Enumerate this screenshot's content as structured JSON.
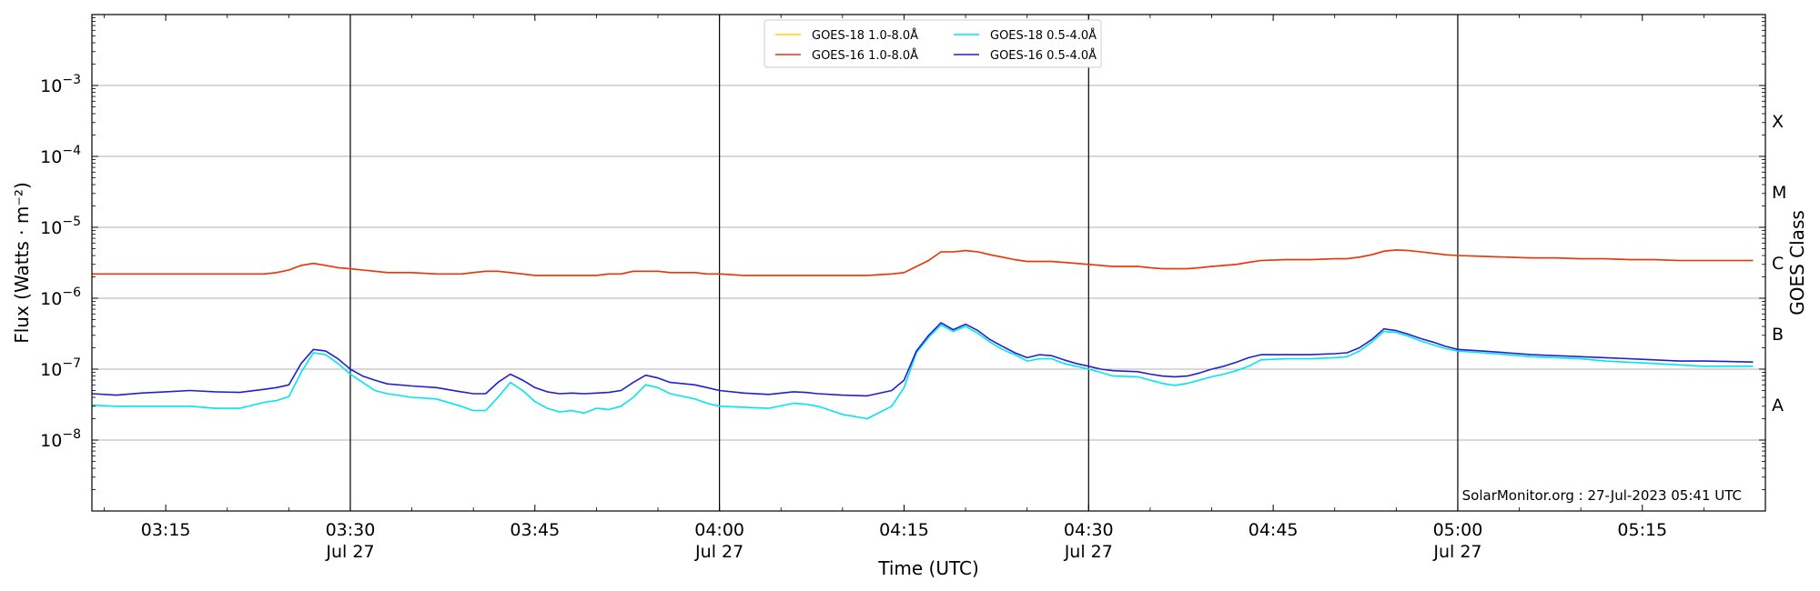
{
  "chart_data": {
    "type": "line",
    "title": "",
    "xlabel": "Time (UTC)",
    "ylabel": "Flux (Watts · m⁻²)",
    "ylabel_right": "GOES Class",
    "y_scale": "log",
    "ylim": [
      1e-09,
      0.01
    ],
    "xlim": [
      "03:09",
      "05:25"
    ],
    "grid": "horizontal",
    "legend_position": "top-center",
    "x_ticks": [
      {
        "t": "03:15",
        "label": "03:15",
        "date": ""
      },
      {
        "t": "03:30",
        "label": "03:30",
        "date": "Jul 27"
      },
      {
        "t": "03:45",
        "label": "03:45",
        "date": ""
      },
      {
        "t": "04:00",
        "label": "04:00",
        "date": "Jul 27"
      },
      {
        "t": "04:15",
        "label": "04:15",
        "date": ""
      },
      {
        "t": "04:30",
        "label": "04:30",
        "date": "Jul 27"
      },
      {
        "t": "04:45",
        "label": "04:45",
        "date": ""
      },
      {
        "t": "05:00",
        "label": "05:00",
        "date": "Jul 27"
      },
      {
        "t": "05:15",
        "label": "05:15",
        "date": ""
      }
    ],
    "vertical_lines": [
      "03:30",
      "04:00",
      "04:30",
      "05:00"
    ],
    "y_ticks": [
      {
        "value": 1e-08,
        "base": "10",
        "exp": "−8"
      },
      {
        "value": 1e-07,
        "base": "10",
        "exp": "−7"
      },
      {
        "value": 1e-06,
        "base": "10",
        "exp": "−6"
      },
      {
        "value": 1e-05,
        "base": "10",
        "exp": "−5"
      },
      {
        "value": 0.0001,
        "base": "10",
        "exp": "−4"
      },
      {
        "value": 0.001,
        "base": "10",
        "exp": "−3"
      }
    ],
    "goes_classes": [
      {
        "label": "A",
        "value": 3.16e-08
      },
      {
        "label": "B",
        "value": 3.16e-07
      },
      {
        "label": "C",
        "value": 3.16e-06
      },
      {
        "label": "M",
        "value": 3.16e-05
      },
      {
        "label": "X",
        "value": 0.000316
      }
    ],
    "x": [
      "03:09",
      "03:11",
      "03:13",
      "03:15",
      "03:17",
      "03:19",
      "03:21",
      "03:23",
      "03:24",
      "03:25",
      "03:26",
      "03:27",
      "03:28",
      "03:29",
      "03:30",
      "03:31",
      "03:32",
      "03:33",
      "03:35",
      "03:37",
      "03:39",
      "03:40",
      "03:41",
      "03:42",
      "03:43",
      "03:44",
      "03:45",
      "03:46",
      "03:47",
      "03:48",
      "03:49",
      "03:50",
      "03:51",
      "03:52",
      "03:53",
      "03:54",
      "03:55",
      "03:56",
      "03:58",
      "03:59",
      "04:00",
      "04:02",
      "04:04",
      "04:06",
      "04:07",
      "04:08",
      "04:10",
      "04:12",
      "04:14",
      "04:15",
      "04:16",
      "04:17",
      "04:18",
      "04:19",
      "04:20",
      "04:21",
      "04:22",
      "04:23",
      "04:24",
      "04:25",
      "04:26",
      "04:27",
      "04:28",
      "04:29",
      "04:30",
      "04:31",
      "04:32",
      "04:34",
      "04:35",
      "04:36",
      "04:37",
      "04:38",
      "04:39",
      "04:40",
      "04:41",
      "04:42",
      "04:43",
      "04:44",
      "04:46",
      "04:48",
      "04:50",
      "04:51",
      "04:52",
      "04:53",
      "04:54",
      "04:55",
      "04:56",
      "04:57",
      "04:58",
      "04:59",
      "05:00",
      "05:02",
      "05:04",
      "05:06",
      "05:08",
      "05:10",
      "05:12",
      "05:14",
      "05:16",
      "05:18",
      "05:20",
      "05:22",
      "05:24"
    ],
    "series": [
      {
        "name": "GOES-18 1.0-8.0Å",
        "color": "#ffd700",
        "values": [
          2.2e-06,
          2.2e-06,
          2.2e-06,
          2.2e-06,
          2.2e-06,
          2.2e-06,
          2.2e-06,
          2.2e-06,
          2.3e-06,
          2.5e-06,
          2.9e-06,
          3.1e-06,
          2.9e-06,
          2.7e-06,
          2.6e-06,
          2.5e-06,
          2.4e-06,
          2.3e-06,
          2.3e-06,
          2.2e-06,
          2.2e-06,
          2.3e-06,
          2.4e-06,
          2.4e-06,
          2.3e-06,
          2.2e-06,
          2.1e-06,
          2.1e-06,
          2.1e-06,
          2.1e-06,
          2.1e-06,
          2.1e-06,
          2.2e-06,
          2.2e-06,
          2.4e-06,
          2.4e-06,
          2.4e-06,
          2.3e-06,
          2.3e-06,
          2.2e-06,
          2.2e-06,
          2.1e-06,
          2.1e-06,
          2.1e-06,
          2.1e-06,
          2.1e-06,
          2.1e-06,
          2.1e-06,
          2.2e-06,
          2.3e-06,
          2.8e-06,
          3.4e-06,
          4.5e-06,
          4.5e-06,
          4.7e-06,
          4.5e-06,
          4.1e-06,
          3.8e-06,
          3.5e-06,
          3.3e-06,
          3.3e-06,
          3.3e-06,
          3.2e-06,
          3.1e-06,
          3e-06,
          2.9e-06,
          2.8e-06,
          2.8e-06,
          2.7e-06,
          2.6e-06,
          2.6e-06,
          2.6e-06,
          2.7e-06,
          2.8e-06,
          2.9e-06,
          3e-06,
          3.2e-06,
          3.4e-06,
          3.5e-06,
          3.5e-06,
          3.6e-06,
          3.6e-06,
          3.8e-06,
          4.1e-06,
          4.6e-06,
          4.8e-06,
          4.7e-06,
          4.5e-06,
          4.3e-06,
          4.1e-06,
          4e-06,
          3.9e-06,
          3.8e-06,
          3.7e-06,
          3.7e-06,
          3.6e-06,
          3.6e-06,
          3.5e-06,
          3.5e-06,
          3.4e-06,
          3.4e-06,
          3.4e-06,
          3.4e-06
        ]
      },
      {
        "name": "GOES-16 1.0-8.0Å",
        "color": "#e8341a",
        "values": [
          2.2e-06,
          2.2e-06,
          2.2e-06,
          2.2e-06,
          2.2e-06,
          2.2e-06,
          2.2e-06,
          2.2e-06,
          2.3e-06,
          2.5e-06,
          2.9e-06,
          3.1e-06,
          2.9e-06,
          2.7e-06,
          2.6e-06,
          2.5e-06,
          2.4e-06,
          2.3e-06,
          2.3e-06,
          2.2e-06,
          2.2e-06,
          2.3e-06,
          2.4e-06,
          2.4e-06,
          2.3e-06,
          2.2e-06,
          2.1e-06,
          2.1e-06,
          2.1e-06,
          2.1e-06,
          2.1e-06,
          2.1e-06,
          2.2e-06,
          2.2e-06,
          2.4e-06,
          2.4e-06,
          2.4e-06,
          2.3e-06,
          2.3e-06,
          2.2e-06,
          2.2e-06,
          2.1e-06,
          2.1e-06,
          2.1e-06,
          2.1e-06,
          2.1e-06,
          2.1e-06,
          2.1e-06,
          2.2e-06,
          2.3e-06,
          2.8e-06,
          3.4e-06,
          4.5e-06,
          4.5e-06,
          4.7e-06,
          4.5e-06,
          4.1e-06,
          3.8e-06,
          3.5e-06,
          3.3e-06,
          3.3e-06,
          3.3e-06,
          3.2e-06,
          3.1e-06,
          3e-06,
          2.9e-06,
          2.8e-06,
          2.8e-06,
          2.7e-06,
          2.6e-06,
          2.6e-06,
          2.6e-06,
          2.7e-06,
          2.8e-06,
          2.9e-06,
          3e-06,
          3.2e-06,
          3.4e-06,
          3.5e-06,
          3.5e-06,
          3.6e-06,
          3.6e-06,
          3.8e-06,
          4.1e-06,
          4.6e-06,
          4.8e-06,
          4.7e-06,
          4.5e-06,
          4.3e-06,
          4.1e-06,
          4e-06,
          3.9e-06,
          3.8e-06,
          3.7e-06,
          3.7e-06,
          3.6e-06,
          3.6e-06,
          3.5e-06,
          3.5e-06,
          3.4e-06,
          3.4e-06,
          3.4e-06,
          3.4e-06
        ]
      },
      {
        "name": "GOES-18 0.5-4.0Å",
        "color": "#00e5ee",
        "values": [
          3.1e-08,
          3e-08,
          3e-08,
          3e-08,
          3e-08,
          2.8e-08,
          2.8e-08,
          3.4e-08,
          3.6e-08,
          4.1e-08,
          9e-08,
          1.7e-07,
          1.6e-07,
          1.2e-07,
          8.5e-08,
          6.5e-08,
          5e-08,
          4.5e-08,
          4e-08,
          3.8e-08,
          3e-08,
          2.6e-08,
          2.6e-08,
          4e-08,
          6.5e-08,
          5e-08,
          3.5e-08,
          2.8e-08,
          2.5e-08,
          2.6e-08,
          2.4e-08,
          2.8e-08,
          2.7e-08,
          3e-08,
          4e-08,
          6e-08,
          5.5e-08,
          4.5e-08,
          3.8e-08,
          3.3e-08,
          3e-08,
          2.9e-08,
          2.8e-08,
          3.3e-08,
          3.2e-08,
          3e-08,
          2.3e-08,
          2e-08,
          3e-08,
          5.5e-08,
          1.7e-07,
          2.8e-07,
          4.2e-07,
          3.4e-07,
          4e-07,
          3.2e-07,
          2.4e-07,
          1.9e-07,
          1.6e-07,
          1.3e-07,
          1.4e-07,
          1.4e-07,
          1.2e-07,
          1.1e-07,
          1e-07,
          9e-08,
          8e-08,
          7.8e-08,
          7e-08,
          6.3e-08,
          5.9e-08,
          6.3e-08,
          7e-08,
          7.8e-08,
          8.5e-08,
          9.5e-08,
          1.1e-07,
          1.35e-07,
          1.4e-07,
          1.4e-07,
          1.45e-07,
          1.5e-07,
          1.8e-07,
          2.4e-07,
          3.4e-07,
          3.3e-07,
          2.9e-07,
          2.5e-07,
          2.2e-07,
          1.95e-07,
          1.8e-07,
          1.7e-07,
          1.6e-07,
          1.5e-07,
          1.45e-07,
          1.4e-07,
          1.3e-07,
          1.25e-07,
          1.2e-07,
          1.15e-07,
          1.1e-07,
          1.1e-07,
          1.1e-07
        ]
      },
      {
        "name": "GOES-16 0.5-4.0Å",
        "color": "#1f1fd6",
        "values": [
          4.5e-08,
          4.3e-08,
          4.6e-08,
          4.8e-08,
          5e-08,
          4.8e-08,
          4.7e-08,
          5.2e-08,
          5.5e-08,
          6e-08,
          1.2e-07,
          1.9e-07,
          1.8e-07,
          1.4e-07,
          1e-07,
          8e-08,
          7e-08,
          6.2e-08,
          5.8e-08,
          5.5e-08,
          4.8e-08,
          4.5e-08,
          4.5e-08,
          6.5e-08,
          8.5e-08,
          7e-08,
          5.5e-08,
          4.8e-08,
          4.5e-08,
          4.6e-08,
          4.5e-08,
          4.6e-08,
          4.7e-08,
          5e-08,
          6.5e-08,
          8.2e-08,
          7.5e-08,
          6.5e-08,
          6e-08,
          5.5e-08,
          5e-08,
          4.6e-08,
          4.4e-08,
          4.8e-08,
          4.7e-08,
          4.5e-08,
          4.3e-08,
          4.2e-08,
          5e-08,
          7e-08,
          1.8e-07,
          3e-07,
          4.5e-07,
          3.6e-07,
          4.3e-07,
          3.5e-07,
          2.6e-07,
          2.1e-07,
          1.7e-07,
          1.45e-07,
          1.6e-07,
          1.55e-07,
          1.35e-07,
          1.2e-07,
          1.1e-07,
          1e-07,
          9.5e-08,
          9.2e-08,
          8.5e-08,
          8e-08,
          7.8e-08,
          8e-08,
          8.8e-08,
          1e-07,
          1.1e-07,
          1.25e-07,
          1.45e-07,
          1.6e-07,
          1.6e-07,
          1.6e-07,
          1.65e-07,
          1.7e-07,
          2e-07,
          2.6e-07,
          3.7e-07,
          3.5e-07,
          3.1e-07,
          2.7e-07,
          2.4e-07,
          2.1e-07,
          1.9e-07,
          1.8e-07,
          1.7e-07,
          1.6e-07,
          1.55e-07,
          1.5e-07,
          1.45e-07,
          1.4e-07,
          1.35e-07,
          1.3e-07,
          1.3e-07,
          1.28e-07,
          1.26e-07
        ]
      }
    ],
    "credit": "SolarMonitor.org : 27-Jul-2023 05:41 UTC"
  }
}
